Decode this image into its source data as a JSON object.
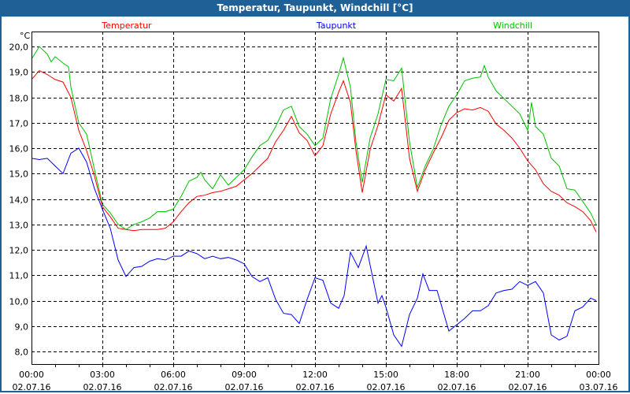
{
  "window": {
    "title": "Temperatur, Taupunkt, Windchill [°C]"
  },
  "chart_data": {
    "type": "line",
    "title": "Temperatur, Taupunkt, Windchill [°C]",
    "ylabel": "°C",
    "ylim": [
      7.6,
      20.6
    ],
    "yticks": [
      "8,0",
      "9,0",
      "10,0",
      "11,0",
      "12,0",
      "13,0",
      "14,0",
      "15,0",
      "16,0",
      "17,0",
      "18,0",
      "19,0",
      "20,0"
    ],
    "ytick_values": [
      8,
      9,
      10,
      11,
      12,
      13,
      14,
      15,
      16,
      17,
      18,
      19,
      20
    ],
    "xticks": [
      {
        "time": "00:00",
        "date": "02.07.16"
      },
      {
        "time": "03:00",
        "date": "02.07.16"
      },
      {
        "time": "06:00",
        "date": "02.07.16"
      },
      {
        "time": "09:00",
        "date": "02.07.16"
      },
      {
        "time": "12:00",
        "date": "02.07.16"
      },
      {
        "time": "15:00",
        "date": "02.07.16"
      },
      {
        "time": "18:00",
        "date": "02.07.16"
      },
      {
        "time": "21:00",
        "date": "02.07.16"
      },
      {
        "time": "00:00",
        "date": "03.07.16"
      }
    ],
    "grid": true,
    "legend_placement": "top",
    "series": [
      {
        "name": "Temperatur",
        "color": "#ff0000",
        "points": [
          [
            "00:00",
            18.7
          ],
          [
            "00:20",
            19.05
          ],
          [
            "00:40",
            18.9
          ],
          [
            "01:00",
            18.7
          ],
          [
            "01:20",
            18.6
          ],
          [
            "01:40",
            18.0
          ],
          [
            "02:00",
            16.7
          ],
          [
            "02:20",
            15.9
          ],
          [
            "02:40",
            14.9
          ],
          [
            "03:00",
            13.7
          ],
          [
            "03:20",
            13.3
          ],
          [
            "03:40",
            12.85
          ],
          [
            "04:00",
            12.8
          ],
          [
            "04:20",
            12.75
          ],
          [
            "04:40",
            12.8
          ],
          [
            "05:00",
            12.8
          ],
          [
            "05:20",
            12.8
          ],
          [
            "05:40",
            12.85
          ],
          [
            "06:00",
            13.1
          ],
          [
            "06:20",
            13.5
          ],
          [
            "06:40",
            13.85
          ],
          [
            "07:00",
            14.1
          ],
          [
            "07:20",
            14.15
          ],
          [
            "07:40",
            14.25
          ],
          [
            "08:00",
            14.3
          ],
          [
            "08:20",
            14.4
          ],
          [
            "08:40",
            14.5
          ],
          [
            "09:00",
            14.75
          ],
          [
            "09:20",
            15.0
          ],
          [
            "09:40",
            15.3
          ],
          [
            "10:00",
            15.6
          ],
          [
            "10:20",
            16.25
          ],
          [
            "10:40",
            16.7
          ],
          [
            "11:00",
            17.25
          ],
          [
            "11:20",
            16.6
          ],
          [
            "11:40",
            16.3
          ],
          [
            "12:00",
            15.7
          ],
          [
            "12:20",
            16.1
          ],
          [
            "12:40",
            17.35
          ],
          [
            "13:00",
            18.2
          ],
          [
            "13:12",
            18.65
          ],
          [
            "13:30",
            17.8
          ],
          [
            "13:44",
            15.9
          ],
          [
            "14:00",
            14.25
          ],
          [
            "14:20",
            15.95
          ],
          [
            "14:40",
            16.9
          ],
          [
            "15:00",
            18.1
          ],
          [
            "15:20",
            17.85
          ],
          [
            "15:40",
            18.35
          ],
          [
            "16:00",
            15.6
          ],
          [
            "16:20",
            14.3
          ],
          [
            "16:40",
            15.15
          ],
          [
            "17:00",
            15.8
          ],
          [
            "17:20",
            16.4
          ],
          [
            "17:40",
            17.1
          ],
          [
            "18:00",
            17.4
          ],
          [
            "18:20",
            17.55
          ],
          [
            "18:40",
            17.5
          ],
          [
            "19:00",
            17.6
          ],
          [
            "19:20",
            17.45
          ],
          [
            "19:40",
            16.95
          ],
          [
            "20:00",
            16.7
          ],
          [
            "20:20",
            16.4
          ],
          [
            "20:40",
            16.0
          ],
          [
            "21:00",
            15.5
          ],
          [
            "21:20",
            15.15
          ],
          [
            "21:40",
            14.6
          ],
          [
            "22:00",
            14.3
          ],
          [
            "22:20",
            14.15
          ],
          [
            "22:40",
            13.85
          ],
          [
            "23:00",
            13.7
          ],
          [
            "23:20",
            13.5
          ],
          [
            "23:40",
            13.15
          ],
          [
            "23:54",
            12.7
          ]
        ]
      },
      {
        "name": "Taupunkt",
        "color": "#0000ff",
        "points": [
          [
            "00:00",
            15.6
          ],
          [
            "00:20",
            15.55
          ],
          [
            "00:40",
            15.6
          ],
          [
            "01:00",
            15.3
          ],
          [
            "01:20",
            15.0
          ],
          [
            "01:40",
            15.8
          ],
          [
            "02:00",
            16.0
          ],
          [
            "02:20",
            15.45
          ],
          [
            "02:40",
            14.4
          ],
          [
            "03:00",
            13.6
          ],
          [
            "03:20",
            12.85
          ],
          [
            "03:40",
            11.6
          ],
          [
            "04:00",
            10.95
          ],
          [
            "04:20",
            11.3
          ],
          [
            "04:40",
            11.35
          ],
          [
            "05:00",
            11.55
          ],
          [
            "05:20",
            11.65
          ],
          [
            "05:40",
            11.6
          ],
          [
            "06:00",
            11.75
          ],
          [
            "06:20",
            11.75
          ],
          [
            "06:40",
            11.95
          ],
          [
            "07:00",
            11.85
          ],
          [
            "07:20",
            11.65
          ],
          [
            "07:40",
            11.75
          ],
          [
            "08:00",
            11.65
          ],
          [
            "08:20",
            11.7
          ],
          [
            "08:40",
            11.6
          ],
          [
            "09:00",
            11.45
          ],
          [
            "09:20",
            10.95
          ],
          [
            "09:40",
            10.75
          ],
          [
            "10:00",
            10.9
          ],
          [
            "10:20",
            10.05
          ],
          [
            "10:40",
            9.5
          ],
          [
            "11:00",
            9.45
          ],
          [
            "11:20",
            9.1
          ],
          [
            "11:40",
            10.05
          ],
          [
            "12:00",
            10.9
          ],
          [
            "12:20",
            10.8
          ],
          [
            "12:40",
            9.9
          ],
          [
            "13:00",
            9.7
          ],
          [
            "13:14",
            10.2
          ],
          [
            "13:30",
            11.9
          ],
          [
            "13:50",
            11.3
          ],
          [
            "14:10",
            12.15
          ],
          [
            "14:30",
            10.65
          ],
          [
            "14:40",
            9.9
          ],
          [
            "14:50",
            10.2
          ],
          [
            "15:00",
            9.75
          ],
          [
            "15:20",
            8.65
          ],
          [
            "15:40",
            8.2
          ],
          [
            "16:00",
            9.45
          ],
          [
            "16:20",
            10.1
          ],
          [
            "16:34",
            11.05
          ],
          [
            "16:50",
            10.4
          ],
          [
            "17:10",
            10.4
          ],
          [
            "17:40",
            8.8
          ],
          [
            "18:00",
            9.05
          ],
          [
            "18:20",
            9.3
          ],
          [
            "18:40",
            9.6
          ],
          [
            "19:00",
            9.6
          ],
          [
            "19:20",
            9.8
          ],
          [
            "19:40",
            10.3
          ],
          [
            "20:00",
            10.4
          ],
          [
            "20:20",
            10.45
          ],
          [
            "20:40",
            10.75
          ],
          [
            "21:00",
            10.6
          ],
          [
            "21:20",
            10.75
          ],
          [
            "21:40",
            10.3
          ],
          [
            "22:00",
            8.65
          ],
          [
            "22:20",
            8.45
          ],
          [
            "22:40",
            8.6
          ],
          [
            "23:00",
            9.6
          ],
          [
            "23:20",
            9.75
          ],
          [
            "23:40",
            10.1
          ],
          [
            "23:54",
            10.0
          ]
        ]
      },
      {
        "name": "Windchill",
        "color": "#00c000",
        "points": [
          [
            "00:00",
            19.5
          ],
          [
            "00:20",
            20.0
          ],
          [
            "00:40",
            19.7
          ],
          [
            "00:50",
            19.4
          ],
          [
            "01:00",
            19.6
          ],
          [
            "01:20",
            19.35
          ],
          [
            "01:34",
            19.2
          ],
          [
            "01:40",
            18.4
          ],
          [
            "02:00",
            17.0
          ],
          [
            "02:20",
            16.55
          ],
          [
            "02:40",
            15.15
          ],
          [
            "03:00",
            13.8
          ],
          [
            "03:20",
            13.45
          ],
          [
            "03:40",
            13.0
          ],
          [
            "04:00",
            12.8
          ],
          [
            "04:20",
            13.0
          ],
          [
            "04:40",
            13.1
          ],
          [
            "05:00",
            13.25
          ],
          [
            "05:20",
            13.5
          ],
          [
            "05:40",
            13.5
          ],
          [
            "06:00",
            13.6
          ],
          [
            "06:20",
            14.1
          ],
          [
            "06:40",
            14.7
          ],
          [
            "07:00",
            14.85
          ],
          [
            "07:10",
            15.05
          ],
          [
            "07:20",
            14.75
          ],
          [
            "07:40",
            14.4
          ],
          [
            "08:00",
            14.95
          ],
          [
            "08:20",
            14.55
          ],
          [
            "08:40",
            14.85
          ],
          [
            "09:00",
            15.15
          ],
          [
            "09:20",
            15.65
          ],
          [
            "09:40",
            16.1
          ],
          [
            "10:00",
            16.3
          ],
          [
            "10:20",
            16.85
          ],
          [
            "10:40",
            17.5
          ],
          [
            "11:00",
            17.65
          ],
          [
            "11:20",
            16.85
          ],
          [
            "11:40",
            16.55
          ],
          [
            "12:00",
            16.1
          ],
          [
            "12:20",
            16.4
          ],
          [
            "12:40",
            17.95
          ],
          [
            "13:00",
            18.9
          ],
          [
            "13:12",
            19.55
          ],
          [
            "13:30",
            18.4
          ],
          [
            "13:44",
            16.25
          ],
          [
            "14:00",
            14.65
          ],
          [
            "14:20",
            16.4
          ],
          [
            "14:40",
            17.35
          ],
          [
            "15:00",
            18.7
          ],
          [
            "15:20",
            18.65
          ],
          [
            "15:40",
            19.15
          ],
          [
            "16:00",
            16.25
          ],
          [
            "16:20",
            14.45
          ],
          [
            "16:40",
            15.3
          ],
          [
            "17:00",
            15.95
          ],
          [
            "17:20",
            16.9
          ],
          [
            "17:40",
            17.65
          ],
          [
            "18:00",
            18.1
          ],
          [
            "18:20",
            18.65
          ],
          [
            "18:40",
            18.75
          ],
          [
            "19:00",
            18.8
          ],
          [
            "19:10",
            19.25
          ],
          [
            "19:20",
            18.8
          ],
          [
            "19:40",
            18.25
          ],
          [
            "20:00",
            17.95
          ],
          [
            "20:20",
            17.65
          ],
          [
            "20:40",
            17.35
          ],
          [
            "21:00",
            16.7
          ],
          [
            "21:10",
            17.8
          ],
          [
            "21:20",
            16.85
          ],
          [
            "21:40",
            16.55
          ],
          [
            "22:00",
            15.6
          ],
          [
            "22:20",
            15.3
          ],
          [
            "22:40",
            14.4
          ],
          [
            "23:00",
            14.35
          ],
          [
            "23:20",
            13.9
          ],
          [
            "23:40",
            13.45
          ],
          [
            "23:54",
            13.0
          ]
        ]
      }
    ]
  }
}
